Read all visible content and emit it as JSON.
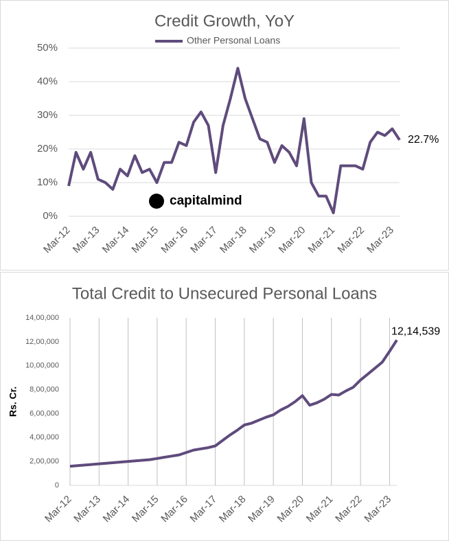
{
  "chart_data": [
    {
      "type": "line",
      "title": "Credit Growth, YoY",
      "watermark": "capitalmind",
      "categories": [
        "Mar-12",
        null,
        null,
        null,
        "Mar-13",
        null,
        null,
        null,
        "Mar-14",
        null,
        null,
        null,
        "Mar-15",
        null,
        null,
        null,
        "Mar-16",
        null,
        null,
        null,
        "Mar-17",
        null,
        null,
        null,
        "Mar-18",
        null,
        null,
        null,
        "Mar-19",
        null,
        null,
        null,
        "Mar-20",
        null,
        null,
        null,
        "Mar-21",
        null,
        null,
        null,
        "Mar-22",
        null,
        null,
        null,
        "Mar-23",
        null
      ],
      "series": [
        {
          "name": "Other Personal Loans",
          "color": "#5f4b7c",
          "values": [
            9,
            19,
            14,
            19,
            11,
            10,
            8,
            14,
            12,
            18,
            13,
            14,
            10,
            16,
            16,
            22,
            21,
            28,
            31,
            27,
            13,
            27,
            35,
            44,
            35,
            29,
            23,
            22,
            16,
            21,
            19,
            15,
            29,
            10,
            6,
            6,
            1,
            15,
            15,
            15,
            14,
            22,
            25,
            24,
            26,
            22.7
          ],
          "value_labels": [
            null,
            null,
            null,
            null,
            null,
            null,
            null,
            null,
            null,
            null,
            null,
            null,
            null,
            null,
            null,
            null,
            null,
            null,
            null,
            null,
            null,
            null,
            null,
            null,
            null,
            null,
            null,
            null,
            null,
            null,
            null,
            null,
            null,
            null,
            null,
            null,
            null,
            null,
            null,
            null,
            null,
            null,
            null,
            null,
            null,
            "22.7%"
          ]
        }
      ],
      "ylim": [
        0,
        50
      ],
      "yticks": [
        {
          "value": 0,
          "label": "0%"
        },
        {
          "value": 10,
          "label": "10%"
        },
        {
          "value": 20,
          "label": "20%"
        },
        {
          "value": 30,
          "label": "30%"
        },
        {
          "value": 40,
          "label": "40%"
        },
        {
          "value": 50,
          "label": "50%"
        }
      ],
      "ygrid": true,
      "xgrid": false,
      "legend": "top"
    },
    {
      "type": "line",
      "title": "Total Credit to Unsecured Personal Loans",
      "y_label": "Rs. Cr.",
      "categories": [
        "Mar-12",
        null,
        null,
        null,
        "Mar-13",
        null,
        null,
        null,
        "Mar-14",
        null,
        null,
        null,
        "Mar-15",
        null,
        null,
        null,
        "Mar-16",
        null,
        null,
        null,
        "Mar-17",
        null,
        null,
        null,
        "Mar-18",
        null,
        null,
        null,
        "Mar-19",
        null,
        null,
        null,
        "Mar-20",
        null,
        null,
        null,
        "Mar-21",
        null,
        null,
        null,
        "Mar-22",
        null,
        null,
        null,
        "Mar-23",
        null
      ],
      "series": [
        {
          "color": "#5f4b7c",
          "values": [
            160000,
            165000,
            170000,
            175000,
            180000,
            185000,
            190000,
            195000,
            200000,
            205000,
            210000,
            215000,
            225000,
            235000,
            245000,
            255000,
            275000,
            295000,
            305000,
            315000,
            330000,
            375000,
            420000,
            460000,
            505000,
            520000,
            545000,
            570000,
            590000,
            630000,
            660000,
            700000,
            750000,
            670000,
            690000,
            720000,
            760000,
            755000,
            790000,
            820000,
            880000,
            930000,
            980000,
            1030000,
            1120000,
            1214539
          ],
          "value_labels": [
            null,
            null,
            null,
            null,
            null,
            null,
            null,
            null,
            null,
            null,
            null,
            null,
            null,
            null,
            null,
            null,
            null,
            null,
            null,
            null,
            null,
            null,
            null,
            null,
            null,
            null,
            null,
            null,
            null,
            null,
            null,
            null,
            null,
            null,
            null,
            null,
            null,
            null,
            null,
            null,
            null,
            null,
            null,
            null,
            null,
            "12,14,539"
          ]
        }
      ],
      "ylim": [
        0,
        1400000
      ],
      "yticks": [
        0,
        {
          "value": 200000,
          "label": "2,00,000"
        },
        {
          "value": 400000,
          "label": "4,00,000"
        },
        {
          "value": 600000,
          "label": "6,00,000"
        },
        {
          "value": 800000,
          "label": "8,00,000"
        },
        {
          "value": 1000000,
          "label": "10,00,000"
        },
        {
          "value": 1200000,
          "label": "12,00,000"
        },
        {
          "value": 1400000,
          "label": "14,00,000"
        }
      ],
      "ygrid": false,
      "xgrid": true
    }
  ]
}
